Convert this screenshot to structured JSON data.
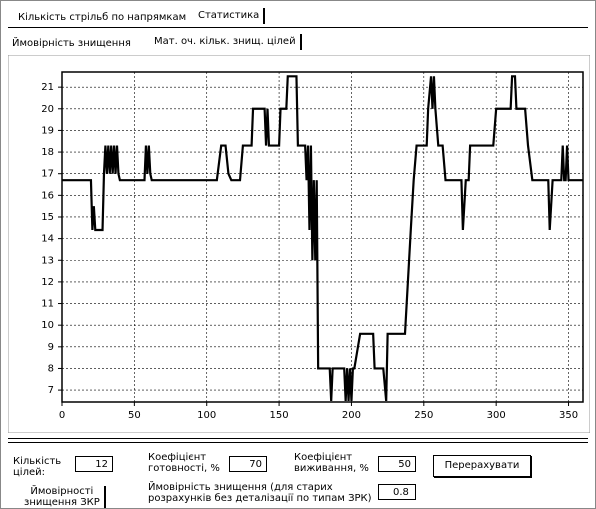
{
  "tabs": [
    "Кількість стрільб по напрямкам",
    "Статистика"
  ],
  "subtabs": [
    "Ймовірність знищення",
    "Мат. оч. кільк. знищ. цілей"
  ],
  "controls": {
    "targets": {
      "label": [
        "Кількість",
        "цілей:"
      ],
      "value": "12"
    },
    "readiness": {
      "label": [
        "Коефіцієнт",
        "готовності, %"
      ],
      "value": "70"
    },
    "survival": {
      "label": [
        "Коефіцієнт",
        "виживання, %"
      ],
      "value": "50"
    },
    "button": "Перерахувати",
    "zkr_tab": [
      "Ймовірності",
      "знищення ЗКР"
    ],
    "probability": {
      "label": [
        "Ймовірність знищення (для старих",
        "розрахунків без деталізації по типам ЗРК)"
      ],
      "value": "0.8"
    }
  },
  "chart_data": {
    "type": "line",
    "color": "#000000",
    "grid": true,
    "xlim": [
      0,
      360
    ],
    "ylim": [
      6.45,
      21.7
    ],
    "xticks": [
      0,
      50,
      100,
      150,
      200,
      250,
      300,
      350
    ],
    "yticks": [
      7,
      8,
      9,
      10,
      11,
      12,
      13,
      14,
      15,
      16,
      17,
      18,
      19,
      20,
      21
    ],
    "x": [
      0,
      20,
      21,
      22,
      23,
      28,
      29,
      30,
      31,
      32,
      33,
      34,
      35,
      36,
      37,
      38,
      39,
      40,
      57,
      58,
      59,
      60,
      61,
      62,
      63,
      107,
      110,
      113,
      115,
      117,
      118,
      123,
      125,
      131,
      132,
      140,
      141,
      142,
      143,
      145,
      150,
      151,
      155,
      156,
      162,
      163,
      168,
      169,
      170,
      171,
      172,
      173,
      174,
      175,
      176,
      177,
      178,
      185,
      186,
      187,
      188,
      195,
      196,
      197,
      198,
      199,
      200,
      201,
      202,
      206,
      215,
      216,
      222,
      224,
      225,
      237,
      239,
      241,
      243,
      245,
      252,
      253,
      255,
      256,
      257,
      258,
      260,
      263,
      265,
      275,
      276,
      277,
      279,
      281,
      282,
      298,
      300,
      308,
      310,
      311,
      313,
      314,
      320,
      322,
      325,
      335,
      336,
      337,
      339,
      344,
      345,
      346,
      347,
      348,
      349,
      350,
      352,
      360
    ],
    "values": [
      16.7,
      16.7,
      14.4,
      15.5,
      14.4,
      14.4,
      17,
      18.3,
      17,
      18.3,
      17,
      18.3,
      17,
      18.3,
      17,
      18.3,
      17,
      16.7,
      16.7,
      18.3,
      17,
      18.3,
      17,
      16.7,
      16.7,
      16.7,
      18.3,
      18.3,
      17,
      16.7,
      16.7,
      16.7,
      18.3,
      18.3,
      20,
      20,
      18.3,
      20,
      18.3,
      18.3,
      18.3,
      20,
      20,
      21.5,
      21.5,
      18.3,
      18.3,
      16.7,
      18.3,
      14.4,
      18.3,
      13,
      16.7,
      13,
      16.7,
      8,
      8,
      8,
      6.5,
      8,
      8,
      8,
      6.5,
      8,
      6.5,
      8,
      6.5,
      8,
      8,
      9.6,
      9.6,
      8,
      8,
      6.5,
      9.6,
      9.6,
      12,
      14.4,
      16.7,
      18.3,
      18.3,
      20,
      21.5,
      20,
      21.5,
      20,
      18.3,
      18.3,
      16.7,
      16.7,
      16.7,
      14.4,
      16.7,
      16.7,
      18.3,
      18.3,
      20,
      20,
      20,
      21.5,
      21.5,
      20,
      20,
      18.3,
      16.7,
      16.7,
      16.7,
      14.4,
      16.7,
      16.7,
      16.7,
      18.3,
      16.7,
      16.7,
      18.3,
      16.7,
      16.7,
      16.7
    ]
  }
}
